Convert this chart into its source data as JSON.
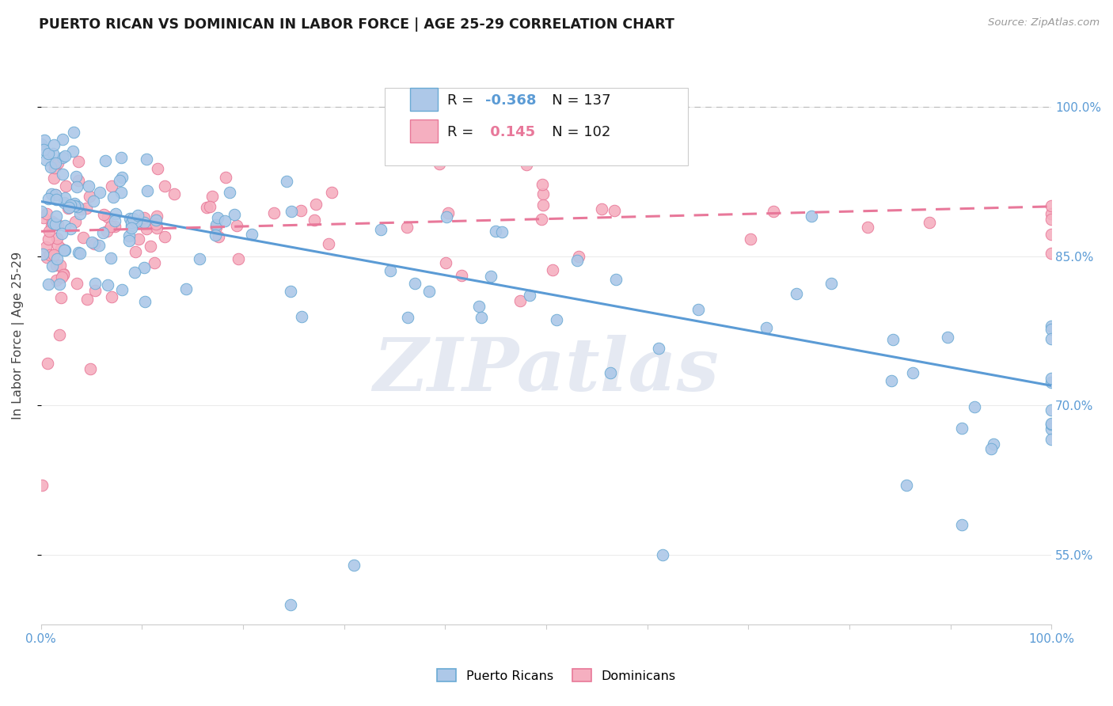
{
  "title": "PUERTO RICAN VS DOMINICAN IN LABOR FORCE | AGE 25-29 CORRELATION CHART",
  "source": "Source: ZipAtlas.com",
  "ylabel": "In Labor Force | Age 25-29",
  "xlim": [
    0.0,
    1.0
  ],
  "ylim": [
    0.48,
    1.06
  ],
  "yticks": [
    0.55,
    0.7,
    0.85,
    1.0
  ],
  "ytick_labels": [
    "55.0%",
    "70.0%",
    "85.0%",
    "100.0%"
  ],
  "blue_R": -0.368,
  "blue_N": 137,
  "pink_R": 0.145,
  "pink_N": 102,
  "blue_color": "#adc8e8",
  "pink_color": "#f5afc0",
  "blue_edge_color": "#6aaad4",
  "pink_edge_color": "#e87898",
  "blue_line_color": "#5b9bd5",
  "pink_line_color": "#e8789a",
  "blue_intercept": 0.905,
  "blue_slope": -0.185,
  "pink_intercept": 0.875,
  "pink_slope": 0.025,
  "watermark_text": "ZIPatlas",
  "background_color": "#ffffff"
}
